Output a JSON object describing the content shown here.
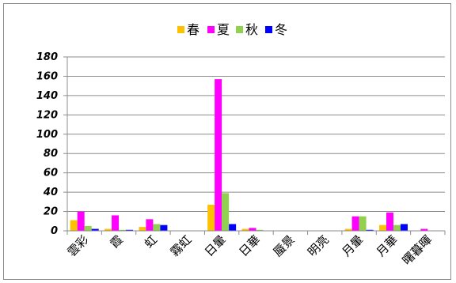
{
  "chart_data": {
    "type": "bar",
    "title": "",
    "xlabel": "",
    "ylabel": "",
    "ylim": [
      0,
      180
    ],
    "yticks": [
      0,
      20,
      40,
      60,
      80,
      100,
      120,
      140,
      160,
      180
    ],
    "grid": true,
    "legend_position": "top",
    "categories": [
      "雲彩",
      "霞",
      "虹",
      "霧虹",
      "日暈",
      "日華",
      "蜃景",
      "明亮",
      "月暈",
      "月華",
      "曙暮暉"
    ],
    "series": [
      {
        "name": "春",
        "color": "#FFC000",
        "values": [
          11,
          2,
          4,
          0,
          27,
          2,
          0,
          0,
          2,
          6,
          0
        ]
      },
      {
        "name": "夏",
        "color": "#FF00FF",
        "values": [
          20,
          16,
          12,
          0,
          157,
          3,
          0,
          0,
          15,
          19,
          2
        ]
      },
      {
        "name": "秋",
        "color": "#92D050",
        "values": [
          5,
          1,
          7,
          0,
          39,
          1,
          0,
          0,
          15,
          6,
          0
        ]
      },
      {
        "name": "冬",
        "color": "#0000FF",
        "values": [
          2,
          1,
          6,
          0,
          7,
          0,
          0,
          0,
          1,
          7,
          0
        ]
      }
    ]
  }
}
